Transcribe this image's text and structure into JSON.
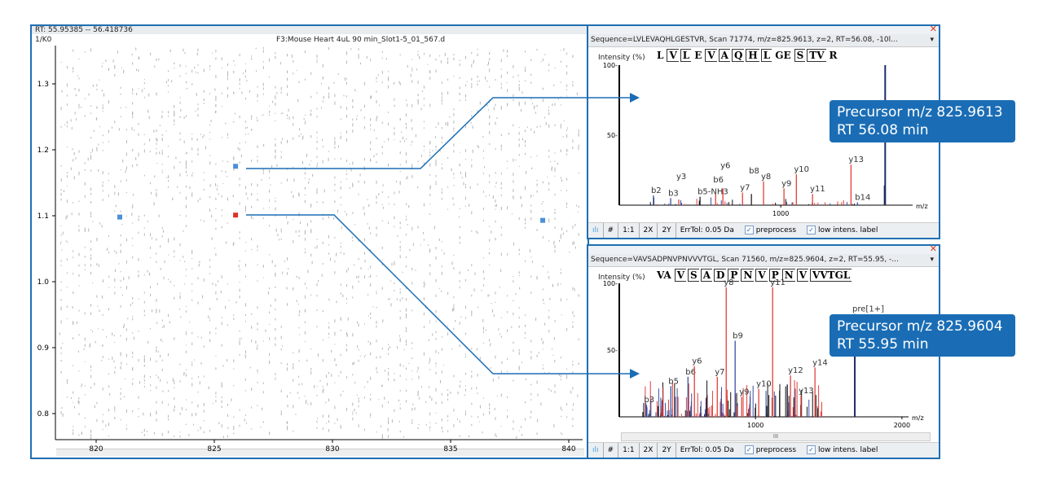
{
  "heatmap": {
    "rt_range": "RT: 55.95385 -- 56.418736",
    "file_title": "F3:Mouse Heart 4uL 90 min_Slot1-5_01_567.d",
    "y_axis_label": "1/K0",
    "y_ticks": [
      "1.3",
      "1.2",
      "1.1",
      "1.0",
      "0.9",
      "0.8"
    ],
    "x_ticks": [
      "820",
      "825",
      "830",
      "835",
      "840"
    ],
    "xlim": [
      817,
      841.5
    ],
    "ylim": [
      0.74,
      1.37
    ],
    "markers": [
      {
        "mz": 821.0,
        "k0": 1.098,
        "color": "#4a90d9"
      },
      {
        "mz": 825.9,
        "k0": 1.175,
        "color": "#4a90d9"
      },
      {
        "mz": 825.9,
        "k0": 1.101,
        "color": "#d9342b"
      },
      {
        "mz": 838.9,
        "k0": 1.093,
        "color": "#4a90d9"
      }
    ]
  },
  "spectra": [
    {
      "header": "Sequence=LVLEVAQHLGESTVR, Scan 71774, m/z=825.9613, z=2, RT=56.08, -10l...",
      "sequence": [
        {
          "t": "L",
          "m": false
        },
        {
          "t": "V",
          "m": true
        },
        {
          "t": "L",
          "m": true
        },
        {
          "t": "E",
          "m": false
        },
        {
          "t": "V",
          "m": true
        },
        {
          "t": "A",
          "m": true
        },
        {
          "t": "Q",
          "m": true
        },
        {
          "t": "H",
          "m": true
        },
        {
          "t": "L",
          "m": true
        },
        {
          "t": "GE",
          "m": false
        },
        {
          "t": "S",
          "m": true
        },
        {
          "t": "TV",
          "m": true
        },
        {
          "t": "R",
          "m": false
        }
      ],
      "y_label": "Intensity (%)",
      "y_ticks": [
        "100",
        "50"
      ],
      "x_ticks": [
        "1000"
      ],
      "x_unit": "m/z",
      "xlim": [
        400,
        1490
      ],
      "peaks": [
        {
          "mz": 527,
          "i": 7,
          "label": "b2",
          "type": "b"
        },
        {
          "mz": 591,
          "i": 5,
          "label": "b3",
          "type": "b"
        },
        {
          "mz": 621,
          "i": 4,
          "label": "y3",
          "type": "y"
        },
        {
          "mz": 700,
          "i": 6,
          "label": "b5-NH3",
          "type": "n"
        },
        {
          "mz": 758,
          "i": 8,
          "label": "b6",
          "type": "y"
        },
        {
          "mz": 785,
          "i": 12,
          "label": "y6",
          "type": "y"
        },
        {
          "mz": 858,
          "i": 9,
          "label": "y7",
          "type": "y"
        },
        {
          "mz": 891,
          "i": 8,
          "label": "b8",
          "type": "n"
        },
        {
          "mz": 936,
          "i": 17,
          "label": "y8",
          "type": "y"
        },
        {
          "mz": 1012,
          "i": 12,
          "label": "y9",
          "type": "y"
        },
        {
          "mz": 1058,
          "i": 22,
          "label": "y10",
          "type": "y"
        },
        {
          "mz": 1118,
          "i": 8,
          "label": "y11",
          "type": "y"
        },
        {
          "mz": 1261,
          "i": 29,
          "label": "y13",
          "type": "y"
        },
        {
          "mz": 1285,
          "i": 2,
          "label": "b14",
          "type": "b"
        },
        {
          "mz": 1385,
          "i": 14,
          "label": "",
          "type": "n"
        },
        {
          "mz": 1388,
          "i": 100,
          "label": "",
          "type": "p"
        }
      ],
      "toolbar": {
        "hash": "#",
        "one": "1:1",
        "x2": "2X",
        "y2": "2Y",
        "errtol": "ErrTol: 0.05 Da",
        "preprocess": "preprocess",
        "lowintens": "low intens. label"
      },
      "callout": [
        "Precursor m/z 825.9613",
        "RT 56.08 min"
      ]
    },
    {
      "header": "Sequence=VAVSADPNVPNVVVTGL, Scan 71560, m/z=825.9604, z=2, RT=55.95, -...",
      "sequence": [
        {
          "t": "VA",
          "m": false
        },
        {
          "t": "V",
          "m": true
        },
        {
          "t": "S",
          "m": true
        },
        {
          "t": "A",
          "m": true
        },
        {
          "t": "D",
          "m": true
        },
        {
          "t": "P",
          "m": true
        },
        {
          "t": "N",
          "m": true
        },
        {
          "t": "V",
          "m": true
        },
        {
          "t": "P",
          "m": true
        },
        {
          "t": "N",
          "m": true
        },
        {
          "t": "V",
          "m": true
        },
        {
          "t": "VVTGL",
          "m": true
        }
      ],
      "y_label": "Intensity (%)",
      "y_ticks": [
        "100",
        "50"
      ],
      "x_ticks": [
        "1000",
        "2000"
      ],
      "x_unit": "m/z",
      "xlim": [
        70,
        2045
      ],
      "peaks": [
        {
          "mz": 256,
          "i": 9,
          "label": "b3",
          "type": "b"
        },
        {
          "mz": 422,
          "i": 23,
          "label": "b5",
          "type": "b"
        },
        {
          "mz": 539,
          "i": 30,
          "label": "b6",
          "type": "b"
        },
        {
          "mz": 583,
          "i": 38,
          "label": "y6",
          "type": "y"
        },
        {
          "mz": 739,
          "i": 30,
          "label": "y7",
          "type": "y"
        },
        {
          "mz": 800,
          "i": 97,
          "label": "y8",
          "type": "y"
        },
        {
          "mz": 861,
          "i": 57,
          "label": "b9",
          "type": "b"
        },
        {
          "mz": 906,
          "i": 15,
          "label": "y9",
          "type": "y"
        },
        {
          "mz": 1022,
          "i": 21,
          "label": "y10",
          "type": "y"
        },
        {
          "mz": 1117,
          "i": 97,
          "label": "y11",
          "type": "y"
        },
        {
          "mz": 1239,
          "i": 31,
          "label": "y12",
          "type": "y"
        },
        {
          "mz": 1311,
          "i": 16,
          "label": "y13",
          "type": "y"
        },
        {
          "mz": 1406,
          "i": 37,
          "label": "y14",
          "type": "y"
        },
        {
          "mz": 1678,
          "i": 77,
          "label": "pre[1+]",
          "type": "p"
        }
      ],
      "scroll_label": "III",
      "toolbar": {
        "hash": "#",
        "one": "1:1",
        "x2": "2X",
        "y2": "2Y",
        "errtol": "ErrTol: 0.05 Da",
        "preprocess": "preprocess",
        "lowintens": "low intens. label"
      },
      "callout": [
        "Precursor m/z 825.9604",
        "RT 55.95 min"
      ]
    }
  ],
  "colors": {
    "frame": "#1f6fb2",
    "y_ion": "#e0403a",
    "b_ion": "#3b4fa0",
    "precursor": "#1e2a6e",
    "callout": "#1a6db5"
  }
}
